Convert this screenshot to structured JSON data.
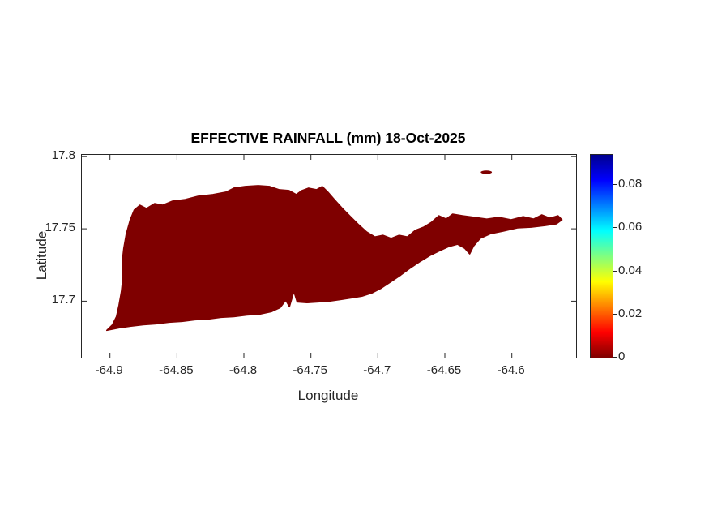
{
  "chart_data": {
    "type": "heatmap",
    "title": "EFFECTIVE RAINFALL (mm) 18-Oct-2025",
    "xlabel": "Longitude",
    "ylabel": "Latitude",
    "xlim": [
      -64.921,
      -64.552
    ],
    "ylim": [
      17.661,
      17.801
    ],
    "xticks": [
      -64.9,
      -64.85,
      -64.8,
      -64.75,
      -64.7,
      -64.65,
      -64.6
    ],
    "xtick_labels": [
      "-64.9",
      "-64.85",
      "-64.8",
      "-64.75",
      "-64.7",
      "-64.65",
      "-64.6"
    ],
    "yticks": [
      17.7,
      17.75,
      17.8
    ],
    "ytick_labels": [
      "17.7",
      "17.75",
      "17.8"
    ],
    "grid": false,
    "legend": "none",
    "uniform_value": 0,
    "fill_color": "#7f0000",
    "colorbar": {
      "position": "right",
      "vmin": 0,
      "vmax": 0.094,
      "ticks": [
        0,
        0.02,
        0.04,
        0.06,
        0.08
      ],
      "tick_labels": [
        "0",
        "0.02",
        "0.04",
        "0.06",
        "0.08"
      ],
      "colormap": "jet-reversed",
      "gradient_stops": [
        {
          "frac": 0.0,
          "color": "#7f0000"
        },
        {
          "frac": 0.125,
          "color": "#ff0000"
        },
        {
          "frac": 0.375,
          "color": "#ffff00"
        },
        {
          "frac": 0.625,
          "color": "#00ffff"
        },
        {
          "frac": 0.875,
          "color": "#0000ff"
        },
        {
          "frac": 1.0,
          "color": "#00008f"
        }
      ]
    },
    "island_polygon": [
      [
        -64.9024,
        17.6798
      ],
      [
        -64.8982,
        17.6837
      ],
      [
        -64.8952,
        17.6893
      ],
      [
        -64.8933,
        17.6972
      ],
      [
        -64.8915,
        17.7067
      ],
      [
        -64.8903,
        17.7169
      ],
      [
        -64.8909,
        17.727
      ],
      [
        -64.8897,
        17.7365
      ],
      [
        -64.8879,
        17.7461
      ],
      [
        -64.8849,
        17.7562
      ],
      [
        -64.8819,
        17.7629
      ],
      [
        -64.8776,
        17.7663
      ],
      [
        -64.8728,
        17.764
      ],
      [
        -64.8667,
        17.7674
      ],
      [
        -64.8607,
        17.7663
      ],
      [
        -64.8534,
        17.7691
      ],
      [
        -64.8438,
        17.7702
      ],
      [
        -64.8341,
        17.7725
      ],
      [
        -64.8232,
        17.7736
      ],
      [
        -64.8135,
        17.7753
      ],
      [
        -64.8075,
        17.7781
      ],
      [
        -64.799,
        17.7792
      ],
      [
        -64.7893,
        17.7798
      ],
      [
        -64.7808,
        17.7792
      ],
      [
        -64.7736,
        17.777
      ],
      [
        -64.7663,
        17.7764
      ],
      [
        -64.7609,
        17.7736
      ],
      [
        -64.7567,
        17.7764
      ],
      [
        -64.7518,
        17.7781
      ],
      [
        -64.7458,
        17.777
      ],
      [
        -64.7415,
        17.7792
      ],
      [
        -64.7373,
        17.7753
      ],
      [
        -64.7325,
        17.7702
      ],
      [
        -64.7264,
        17.764
      ],
      [
        -64.7204,
        17.7584
      ],
      [
        -64.7143,
        17.7528
      ],
      [
        -64.7083,
        17.7478
      ],
      [
        -64.7022,
        17.7444
      ],
      [
        -64.6962,
        17.7455
      ],
      [
        -64.6901,
        17.7433
      ],
      [
        -64.6841,
        17.7455
      ],
      [
        -64.678,
        17.7444
      ],
      [
        -64.672,
        17.7489
      ],
      [
        -64.6659,
        17.7511
      ],
      [
        -64.6599,
        17.7545
      ],
      [
        -64.6544,
        17.759
      ],
      [
        -64.649,
        17.7567
      ],
      [
        -64.6442,
        17.7601
      ],
      [
        -64.6369,
        17.759
      ],
      [
        -64.6278,
        17.7579
      ],
      [
        -64.6187,
        17.7567
      ],
      [
        -64.6097,
        17.7579
      ],
      [
        -64.6006,
        17.7562
      ],
      [
        -64.5915,
        17.7584
      ],
      [
        -64.5837,
        17.7567
      ],
      [
        -64.5776,
        17.7596
      ],
      [
        -64.5716,
        17.7573
      ],
      [
        -64.5655,
        17.759
      ],
      [
        -64.5625,
        17.7562
      ],
      [
        -64.5667,
        17.7534
      ],
      [
        -64.5752,
        17.7522
      ],
      [
        -64.5855,
        17.7511
      ],
      [
        -64.5958,
        17.7506
      ],
      [
        -64.6067,
        17.7483
      ],
      [
        -64.6157,
        17.7466
      ],
      [
        -64.6236,
        17.7433
      ],
      [
        -64.6284,
        17.7382
      ],
      [
        -64.6314,
        17.7326
      ],
      [
        -64.6351,
        17.7365
      ],
      [
        -64.6405,
        17.7393
      ],
      [
        -64.6472,
        17.7376
      ],
      [
        -64.6538,
        17.7348
      ],
      [
        -64.6611,
        17.7315
      ],
      [
        -64.6683,
        17.7275
      ],
      [
        -64.6756,
        17.723
      ],
      [
        -64.6829,
        17.718
      ],
      [
        -64.6901,
        17.7135
      ],
      [
        -64.6974,
        17.709
      ],
      [
        -64.7046,
        17.7056
      ],
      [
        -64.7119,
        17.7034
      ],
      [
        -64.7198,
        17.7022
      ],
      [
        -64.7276,
        17.7011
      ],
      [
        -64.7361,
        17.7
      ],
      [
        -64.7446,
        17.6994
      ],
      [
        -64.753,
        17.6989
      ],
      [
        -64.7603,
        17.6994
      ],
      [
        -64.7627,
        17.7067
      ],
      [
        -64.766,
        17.6961
      ],
      [
        -64.7688,
        17.7006
      ],
      [
        -64.773,
        17.6955
      ],
      [
        -64.7796,
        17.6927
      ],
      [
        -64.7881,
        17.691
      ],
      [
        -64.7978,
        17.6904
      ],
      [
        -64.8075,
        17.6893
      ],
      [
        -64.8171,
        17.6888
      ],
      [
        -64.8268,
        17.6876
      ],
      [
        -64.8365,
        17.6871
      ],
      [
        -64.8462,
        17.686
      ],
      [
        -64.8558,
        17.6854
      ],
      [
        -64.8655,
        17.6843
      ],
      [
        -64.8752,
        17.6837
      ],
      [
        -64.8849,
        17.6826
      ],
      [
        -64.8933,
        17.6815
      ]
    ],
    "islet_ellipse": {
      "center": [
        -64.619,
        17.789
      ],
      "rx": 0.0042,
      "ry": 0.0012
    }
  }
}
